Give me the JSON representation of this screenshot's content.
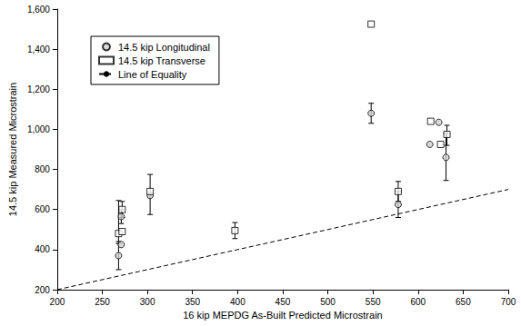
{
  "chart_data": {
    "type": "scatter",
    "x_label": "16 kip MEPDG As-Built Predicted Microstrain",
    "y_label": "14.5 kip Measured Microstrain",
    "xlim": [
      200,
      700
    ],
    "xticks": [
      200,
      250,
      300,
      350,
      400,
      450,
      500,
      550,
      600,
      650,
      700
    ],
    "ylim": [
      200,
      1600
    ],
    "yticks": [
      200,
      400,
      600,
      800,
      {
        "value": 1000,
        "label": "1,000"
      },
      {
        "value": 1200,
        "label": "1,200"
      },
      {
        "value": 1400,
        "label": "1,400"
      },
      {
        "value": 1600,
        "label": "1,600"
      }
    ],
    "grid": false,
    "legend": "upper left",
    "series": [
      {
        "name": "14.5 kip Longitudinal",
        "type": "scatter",
        "marker": "circle",
        "color": "#d0d0d0",
        "x": [
          268,
          271,
          271,
          303,
          548,
          578,
          613,
          623,
          631
        ],
        "values": [
          370,
          425,
          565,
          670,
          1080,
          625,
          925,
          1035,
          860
        ],
        "errors": [
          [
            300,
            440
          ],
          null,
          [
            530,
            600
          ],
          null,
          [
            1030,
            1130
          ],
          [
            560,
            690
          ],
          null,
          null,
          [
            745,
            980
          ]
        ]
      },
      {
        "name": "14.5 kip Transverse",
        "type": "scatter",
        "marker": "square",
        "color": "#ffffff",
        "x": [
          268,
          272,
          272,
          303,
          397,
          548,
          578,
          614,
          625,
          632
        ],
        "values": [
          480,
          490,
          600,
          690,
          495,
          1525,
          690,
          1040,
          925,
          975
        ],
        "errors": [
          [
            430,
            645
          ],
          null,
          [
            560,
            640
          ],
          [
            575,
            775
          ],
          [
            455,
            535
          ],
          null,
          [
            640,
            740
          ],
          null,
          null,
          [
            920,
            1020
          ]
        ]
      },
      {
        "name": "Line of Equality",
        "type": "line",
        "line_style": "dashed",
        "color": "#000000",
        "x": [
          200,
          700
        ],
        "values": [
          200,
          700
        ]
      }
    ]
  }
}
